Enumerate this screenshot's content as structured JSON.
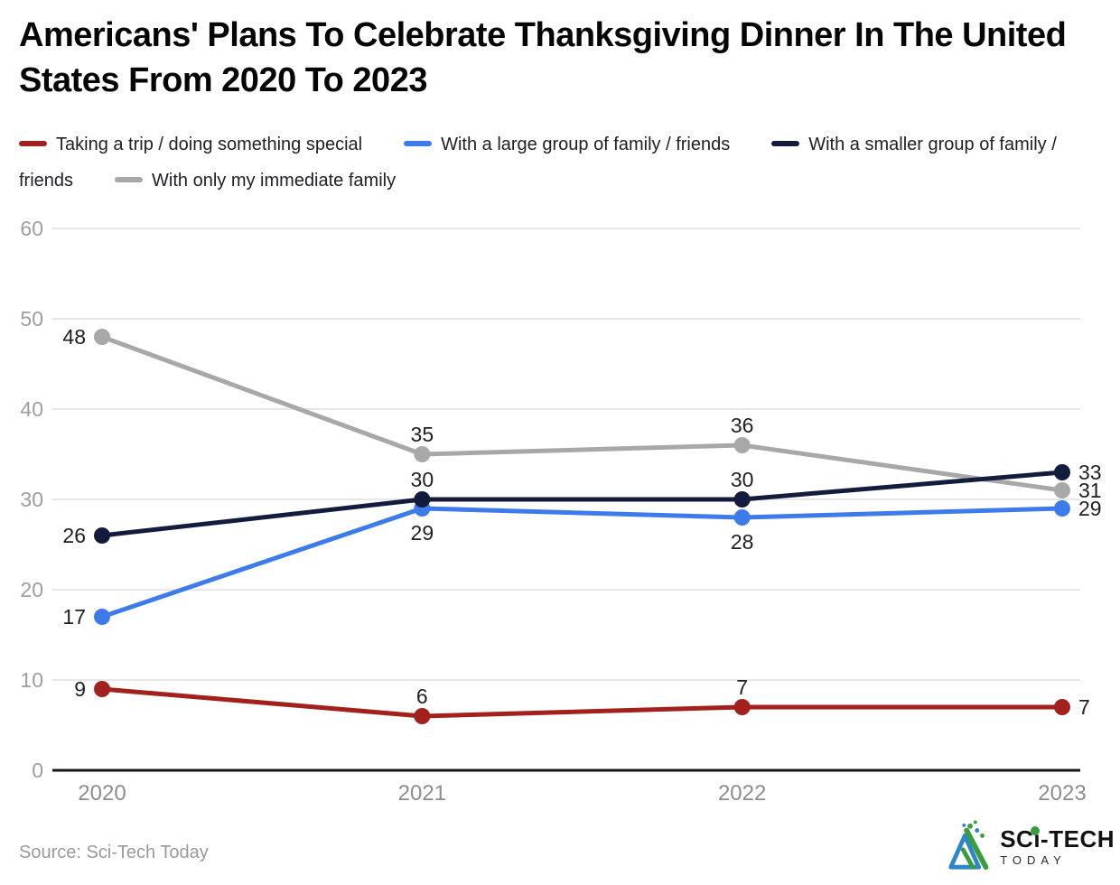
{
  "header": {
    "title": "Americans' Plans To Celebrate Thanksgiving Dinner In The United States From 2020 To 2023"
  },
  "legend": [
    {
      "label": "Taking a trip / doing something special",
      "color": "#a2211c"
    },
    {
      "label": "With a large group of family / friends",
      "color": "#3d7beb"
    },
    {
      "label": "With a smaller group of family / friends",
      "color": "#131c3d"
    },
    {
      "label": "With only my immediate family",
      "color": "#a8a8a8"
    }
  ],
  "chart_data": {
    "type": "line",
    "title": "Americans' Plans To Celebrate Thanksgiving Dinner In The United States From 2020 To 2023",
    "x": [
      "2020",
      "2021",
      "2022",
      "2023"
    ],
    "series": [
      {
        "name": "Taking a trip / doing something special",
        "color": "#a2211c",
        "values": [
          9,
          6,
          7,
          7
        ],
        "label_positions": [
          "left",
          "above",
          "above",
          "right"
        ]
      },
      {
        "name": "With a large group of family / friends",
        "color": "#3d7beb",
        "values": [
          17,
          29,
          28,
          29
        ],
        "label_positions": [
          "left",
          "below",
          "below",
          "right"
        ]
      },
      {
        "name": "With a smaller group of family / friends",
        "color": "#131c3d",
        "values": [
          26,
          30,
          30,
          33
        ],
        "label_positions": [
          "left",
          "above",
          "above",
          "right"
        ]
      },
      {
        "name": "With only my immediate family",
        "color": "#a8a8a8",
        "values": [
          48,
          35,
          36,
          31
        ],
        "label_positions": [
          "left",
          "above",
          "above",
          "right"
        ]
      }
    ],
    "draw_order": [
      3,
      1,
      2,
      0
    ],
    "ylim": [
      0,
      60
    ],
    "yticks": [
      0,
      10,
      20,
      30,
      40,
      50,
      60
    ],
    "grid": true,
    "legend_position": "top",
    "xlabel": "",
    "ylabel": "",
    "style": {
      "grid_color": "#e7e7e7",
      "baseline_color": "#151515",
      "y_tick_label_color": "#9e9e9e",
      "x_tick_label_color": "#8d8d8d",
      "data_label_color": "#1f1f1f"
    }
  },
  "footer": {
    "source": "Source: Sci-Tech Today",
    "logo": {
      "line1": "SCi-TECH",
      "line2": "TODAY",
      "green": "#3a9d3c",
      "blue": "#2e86c9"
    }
  }
}
